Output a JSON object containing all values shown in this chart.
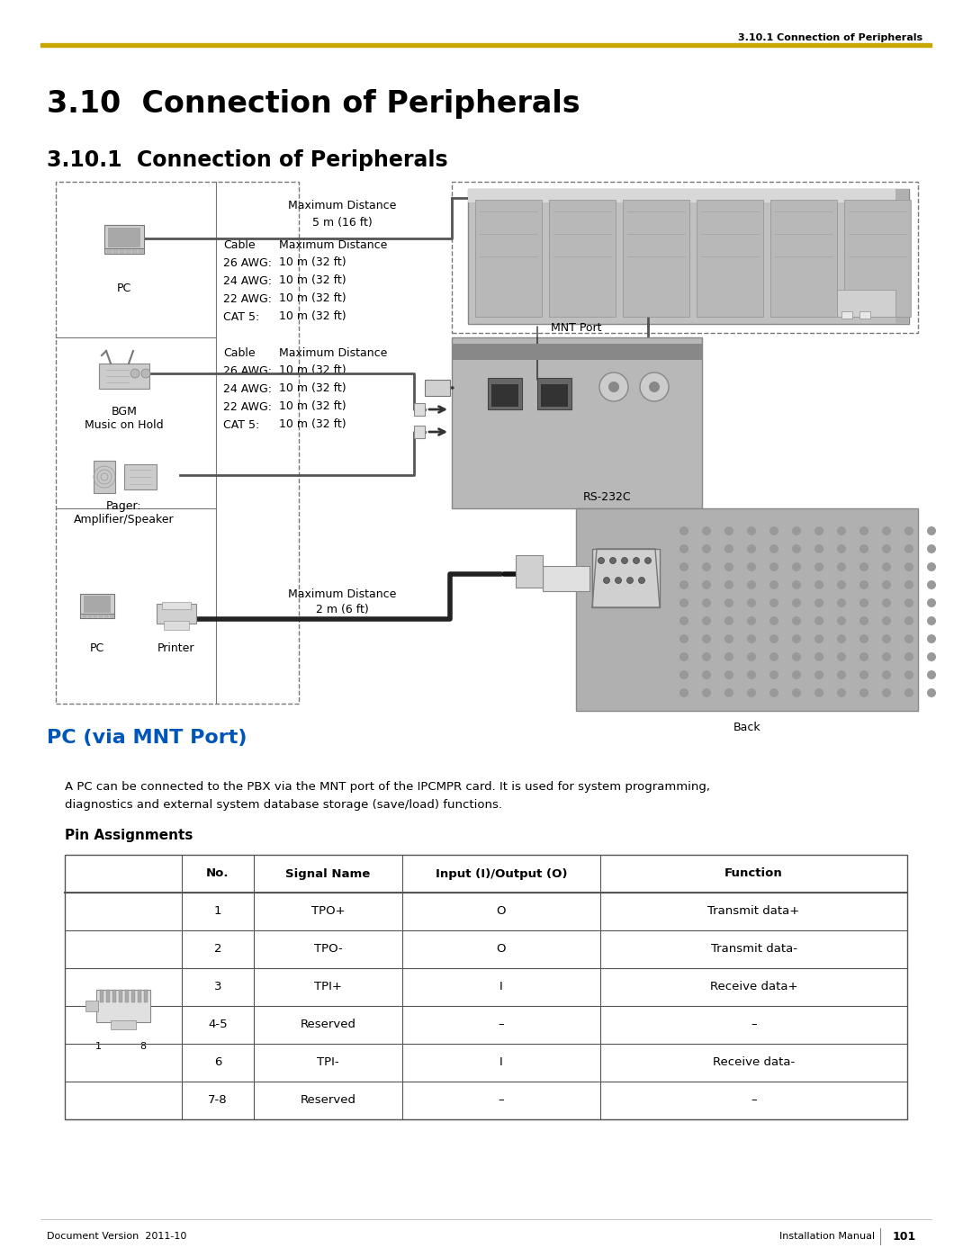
{
  "page_title": "3.10  Connection of Peripherals",
  "header_text": "3.10.1 Connection of Peripherals",
  "gold_line_color": "#C8A800",
  "section_title": "3.10.1  Connection of Peripherals",
  "pc_via_mnt_title": "PC (via MNT Port)",
  "pc_via_mnt_color": "#0055BB",
  "description_text": "A PC can be connected to the PBX via the MNT port of the IPCMPR card. It is used for system programming,\ndiagnostics and external system database storage (save/load) functions.",
  "pin_assignments_title": "Pin Assignments",
  "table_headers": [
    "No.",
    "Signal Name",
    "Input (I)/Output (O)",
    "Function"
  ],
  "table_rows": [
    [
      "1",
      "TPO+",
      "O",
      "Transmit data+"
    ],
    [
      "2",
      "TPO-",
      "O",
      "Transmit data-"
    ],
    [
      "3",
      "TPI+",
      "I",
      "Receive data+"
    ],
    [
      "4-5",
      "Reserved",
      "–",
      "–"
    ],
    [
      "6",
      "TPI-",
      "I",
      "Receive data-"
    ],
    [
      "7-8",
      "Reserved",
      "–",
      "–"
    ]
  ],
  "footer_left": "Document Version  2011-10",
  "footer_right": "Installation Manual",
  "footer_page": "101"
}
